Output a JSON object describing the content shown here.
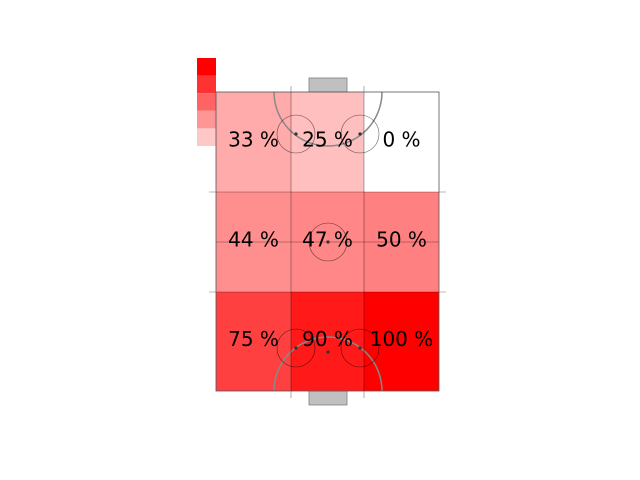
{
  "chart_data": {
    "type": "heatmap",
    "title": "",
    "grid": {
      "rows": 3,
      "cols": 3,
      "values": [
        [
          33,
          25,
          0
        ],
        [
          44,
          47,
          50
        ],
        [
          75,
          90,
          100
        ]
      ],
      "labels": [
        [
          "33 %",
          "25 %",
          "0 %"
        ],
        [
          "44 %",
          "47 %",
          "50 %"
        ],
        [
          "75 %",
          "90 %",
          "100 %"
        ]
      ]
    },
    "vlim": [
      0,
      100
    ],
    "legend": {
      "placement": "top-left",
      "swatches": [
        "#ff0000",
        "#ff3232",
        "#ff6464",
        "#ff9696",
        "#ffc8c8"
      ]
    },
    "colors": {
      "high": "#ff0000",
      "low": "#ffffff",
      "lines": "#000000",
      "goal": "#c0c0c0"
    },
    "background": "hockey-rink"
  }
}
